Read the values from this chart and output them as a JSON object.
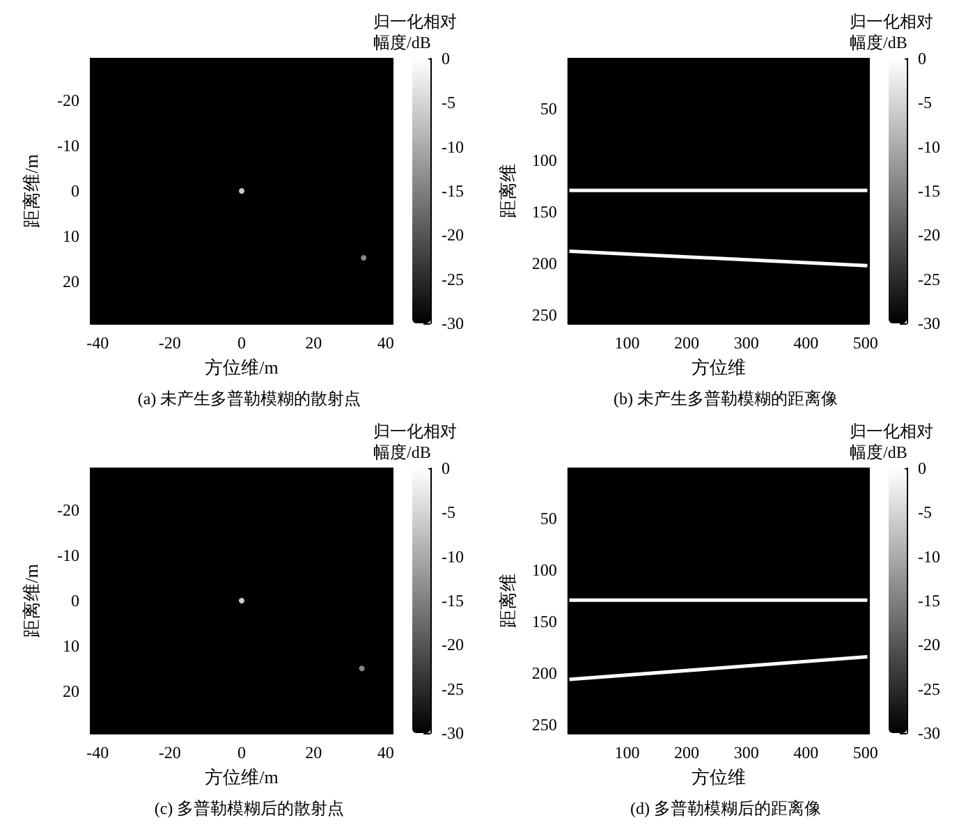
{
  "chart_data": [
    {
      "type": "scatter",
      "xlabel": "方位维/m",
      "ylabel": "距离维/m",
      "clabel": "归一化相对幅度/dB",
      "annotations": [
        "(a) 未产生多普勒模糊的散射点"
      ],
      "x": [
        0,
        33.9
      ],
      "values": [
        0,
        14.8
      ],
      "cvalues": [
        0,
        -10
      ],
      "xlim": [
        -42,
        42
      ],
      "xticks": [
        -40,
        -20,
        0,
        20,
        40
      ],
      "ylim": [
        29.3,
        -29.3
      ],
      "yticks": [
        -20,
        -10,
        0,
        10,
        20
      ],
      "clim": [
        -30,
        0
      ],
      "cticks": [
        0,
        -5,
        -10,
        -15,
        -20,
        -25,
        -30
      ],
      "marker": "circle"
    },
    {
      "type": "line",
      "xlabel": "方位维",
      "ylabel": "距离维",
      "clabel": "归一化相对幅度/dB",
      "annotations": [
        "(b) 未产生多普勒模糊的距离像"
      ],
      "series": [
        {
          "values": [
            129,
            129
          ],
          "color": "#ffffff"
        },
        {
          "values": [
            188,
            202
          ],
          "color": "#ffffff"
        }
      ],
      "x": [
        3,
        503
      ],
      "xlim": [
        1,
        506
      ],
      "xticks": [
        100,
        200,
        300,
        400,
        500
      ],
      "ylim": [
        258,
        1
      ],
      "yticks": [
        50,
        100,
        150,
        200,
        250
      ],
      "clim": [
        -30,
        0
      ],
      "cticks": [
        0,
        -5,
        -10,
        -15,
        -20,
        -25,
        -30
      ]
    },
    {
      "type": "scatter",
      "xlabel": "方位维/m",
      "ylabel": "距离维/m",
      "clabel": "归一化相对幅度/dB",
      "annotations": [
        "(c) 多普勒模糊后的散射点"
      ],
      "x": [
        0,
        33.4
      ],
      "values": [
        0,
        15
      ],
      "cvalues": [
        0,
        -10
      ],
      "xlim": [
        -42,
        42
      ],
      "xticks": [
        -40,
        -20,
        0,
        20,
        40
      ],
      "ylim": [
        29.3,
        -29.3
      ],
      "yticks": [
        -20,
        -10,
        0,
        10,
        20
      ],
      "clim": [
        -30,
        0
      ],
      "cticks": [
        0,
        -5,
        -10,
        -15,
        -20,
        -25,
        -30
      ],
      "marker": "circle"
    },
    {
      "type": "line",
      "xlabel": "方位维",
      "ylabel": "距离维",
      "clabel": "归一化相对幅度/dB",
      "annotations": [
        "(d) 多普勒模糊后的距离像"
      ],
      "series": [
        {
          "values": [
            129,
            129
          ],
          "color": "#ffffff"
        },
        {
          "values": [
            206,
            184
          ],
          "color": "#ffffff"
        }
      ],
      "x": [
        3,
        503
      ],
      "xlim": [
        1,
        506
      ],
      "xticks": [
        100,
        200,
        300,
        400,
        500
      ],
      "ylim": [
        258,
        1
      ],
      "yticks": [
        50,
        100,
        150,
        200,
        250
      ],
      "clim": [
        -30,
        0
      ],
      "cticks": [
        0,
        -5,
        -10,
        -15,
        -20,
        -25,
        -30
      ]
    }
  ]
}
